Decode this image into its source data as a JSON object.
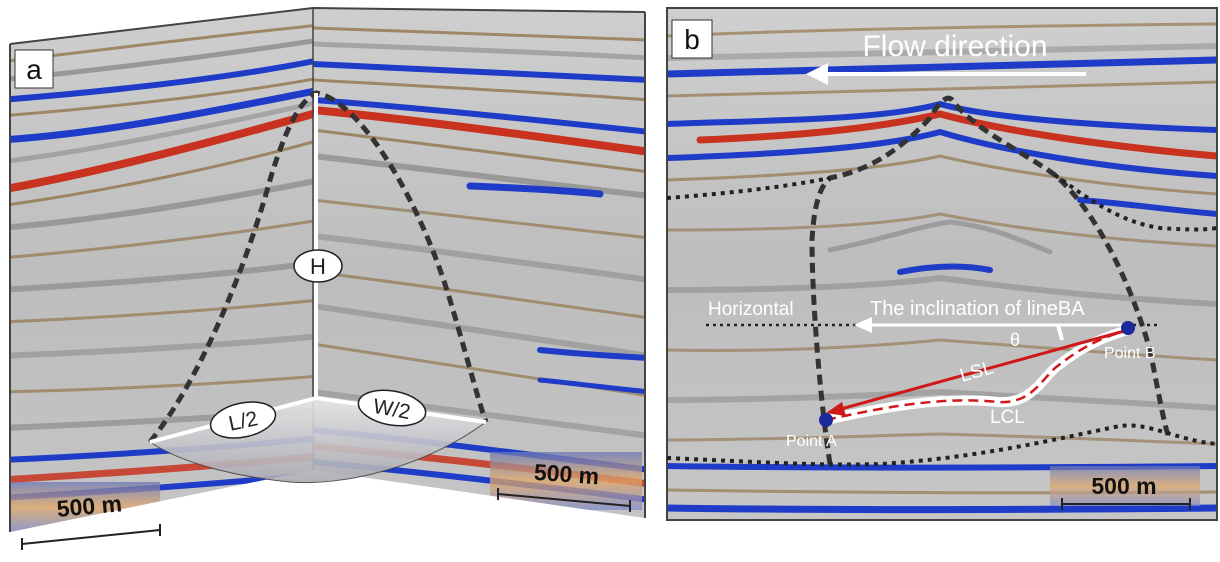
{
  "panel_a": {
    "label": "a",
    "height_label": "H",
    "length_label": "L/2",
    "width_label": "W/2",
    "scale_left": "500 m",
    "scale_right": "500 m"
  },
  "panel_b": {
    "label": "b",
    "flow_label": "Flow direction",
    "horizontal_label": "Horizontal",
    "inclination_label": "The inclination of lineBA",
    "theta_label": "θ",
    "lsl_label": "LSL",
    "lcl_label": "LCL",
    "point_a_label": "Point A",
    "point_b_label": "Point B",
    "scale": "500 m"
  },
  "colors": {
    "seismic_red": "#c8321e",
    "seismic_blue": "#1e3cc8",
    "seismic_brown": "#8a6a3a",
    "gray_bg": "#bdbdbd",
    "dashed_outline": "#333333",
    "red_line": "#d01818",
    "point_blue": "#1a2a9a"
  }
}
